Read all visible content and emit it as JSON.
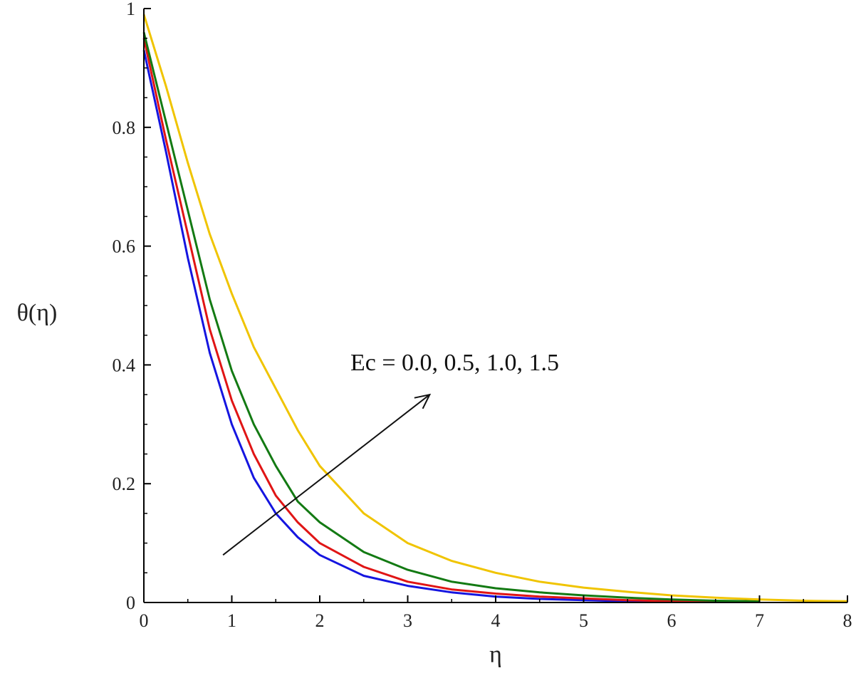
{
  "chart_data": {
    "type": "line",
    "xlabel": "η",
    "ylabel": "θ(η)",
    "xlim": [
      0,
      8
    ],
    "ylim": [
      0,
      1
    ],
    "x_ticks": [
      0,
      1,
      2,
      3,
      4,
      5,
      6,
      7,
      8
    ],
    "y_ticks": [
      0,
      0.2,
      0.4,
      0.6,
      0.8,
      1
    ],
    "x_tick_labels": [
      "0",
      "1",
      "2",
      "3",
      "4",
      "5",
      "6",
      "7",
      "8"
    ],
    "y_tick_labels": [
      "0",
      "0.2",
      "0.4",
      "0.6",
      "0.8",
      "1"
    ],
    "grid": false,
    "annotation": {
      "text": "Ec = 0.0, 0.5, 1.0, 1.5",
      "arrow_from": [
        0.9,
        0.08
      ],
      "arrow_to": [
        3.25,
        0.35
      ]
    },
    "series": [
      {
        "color": "#1515e0",
        "x": [
          0,
          0.25,
          0.5,
          0.75,
          1,
          1.25,
          1.5,
          1.75,
          2,
          2.5,
          3,
          3.5,
          4,
          4.5,
          5,
          5.5,
          6
        ],
        "y": [
          0.93,
          0.76,
          0.58,
          0.42,
          0.3,
          0.21,
          0.15,
          0.11,
          0.08,
          0.045,
          0.028,
          0.017,
          0.01,
          0.006,
          0.004,
          0.002,
          0.001
        ]
      },
      {
        "color": "#e01515",
        "x": [
          0,
          0.25,
          0.5,
          0.75,
          1,
          1.25,
          1.5,
          1.75,
          2,
          2.5,
          3,
          3.5,
          4,
          4.5,
          5,
          5.5,
          6,
          6.5
        ],
        "y": [
          0.95,
          0.78,
          0.62,
          0.46,
          0.34,
          0.25,
          0.18,
          0.135,
          0.1,
          0.06,
          0.035,
          0.022,
          0.015,
          0.01,
          0.007,
          0.004,
          0.002,
          0.001
        ]
      },
      {
        "color": "#137a13",
        "x": [
          0,
          0.25,
          0.5,
          0.75,
          1,
          1.25,
          1.5,
          1.75,
          2,
          2.5,
          3,
          3.5,
          4,
          4.5,
          5,
          5.5,
          6,
          6.5,
          7
        ],
        "y": [
          0.96,
          0.81,
          0.66,
          0.51,
          0.39,
          0.3,
          0.23,
          0.17,
          0.135,
          0.085,
          0.055,
          0.035,
          0.024,
          0.017,
          0.012,
          0.008,
          0.005,
          0.003,
          0.002
        ]
      },
      {
        "color": "#f0c400",
        "x": [
          0,
          0.25,
          0.5,
          0.75,
          1,
          1.25,
          1.5,
          1.75,
          2,
          2.5,
          3,
          3.5,
          4,
          4.5,
          5,
          5.5,
          6,
          6.5,
          7,
          7.5,
          8
        ],
        "y": [
          0.99,
          0.87,
          0.74,
          0.62,
          0.52,
          0.43,
          0.36,
          0.29,
          0.23,
          0.15,
          0.1,
          0.07,
          0.05,
          0.035,
          0.025,
          0.018,
          0.012,
          0.008,
          0.005,
          0.003,
          0.002
        ]
      }
    ]
  }
}
